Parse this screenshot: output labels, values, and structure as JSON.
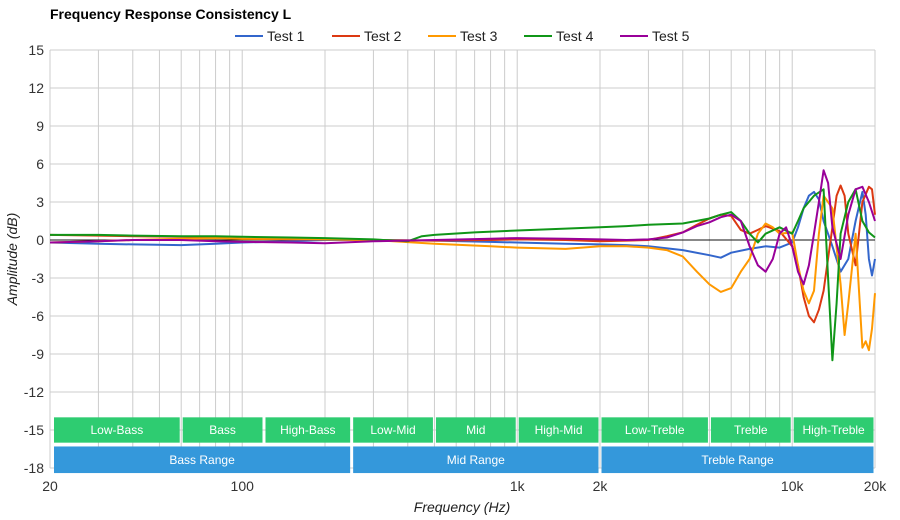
{
  "chart_data": {
    "type": "line",
    "title": "Frequency Response Consistency L",
    "xlabel": "Frequency (Hz)",
    "ylabel": "Amplitude (dB)",
    "x_scale": "log",
    "xlim": [
      20,
      20000
    ],
    "ylim": [
      -18,
      15
    ],
    "grid": true,
    "legend_position": "top",
    "x_ticks": [
      {
        "value": 20,
        "label": "20"
      },
      {
        "value": 100,
        "label": "100"
      },
      {
        "value": 1000,
        "label": "1k"
      },
      {
        "value": 2000,
        "label": "2k"
      },
      {
        "value": 10000,
        "label": "10k"
      },
      {
        "value": 20000,
        "label": "20k"
      }
    ],
    "y_ticks": [
      {
        "value": 15,
        "label": "15"
      },
      {
        "value": 12,
        "label": "12"
      },
      {
        "value": 9,
        "label": "9"
      },
      {
        "value": 6,
        "label": "6"
      },
      {
        "value": 3,
        "label": "3"
      },
      {
        "value": 0,
        "label": "0"
      },
      {
        "value": -3,
        "label": "-3"
      },
      {
        "value": -6,
        "label": "-6"
      },
      {
        "value": -9,
        "label": "-9"
      },
      {
        "value": -12,
        "label": "-12"
      },
      {
        "value": -15,
        "label": "-15"
      },
      {
        "value": -18,
        "label": "-18"
      }
    ],
    "series": [
      {
        "name": "Test 1",
        "color": "#3366cc",
        "points": [
          [
            20,
            -0.2
          ],
          [
            30,
            -0.3
          ],
          [
            40,
            -0.35
          ],
          [
            60,
            -0.4
          ],
          [
            80,
            -0.3
          ],
          [
            100,
            -0.2
          ],
          [
            150,
            -0.1
          ],
          [
            200,
            0
          ],
          [
            300,
            0
          ],
          [
            500,
            -0.05
          ],
          [
            800,
            -0.15
          ],
          [
            1000,
            -0.2
          ],
          [
            1500,
            -0.3
          ],
          [
            2000,
            -0.35
          ],
          [
            2500,
            -0.4
          ],
          [
            3000,
            -0.5
          ],
          [
            4000,
            -0.8
          ],
          [
            5000,
            -1.2
          ],
          [
            5500,
            -1.4
          ],
          [
            6000,
            -1.0
          ],
          [
            7000,
            -0.7
          ],
          [
            8000,
            -0.5
          ],
          [
            9000,
            -0.6
          ],
          [
            10000,
            -0.2
          ],
          [
            10500,
            1.0
          ],
          [
            11000,
            2.5
          ],
          [
            11500,
            3.5
          ],
          [
            12000,
            3.8
          ],
          [
            12500,
            3.2
          ],
          [
            13000,
            1.5
          ],
          [
            14000,
            -0.5
          ],
          [
            15000,
            -2.5
          ],
          [
            16000,
            -1.5
          ],
          [
            17000,
            1.5
          ],
          [
            18000,
            3.8
          ],
          [
            18500,
            2.0
          ],
          [
            19000,
            -1.5
          ],
          [
            19500,
            -2.8
          ],
          [
            20000,
            -1.5
          ]
        ]
      },
      {
        "name": "Test 2",
        "color": "#dc3912",
        "points": [
          [
            20,
            0.4
          ],
          [
            30,
            0.35
          ],
          [
            40,
            0.3
          ],
          [
            60,
            0.25
          ],
          [
            80,
            0.2
          ],
          [
            100,
            0.1
          ],
          [
            150,
            0.05
          ],
          [
            200,
            0.05
          ],
          [
            300,
            0
          ],
          [
            500,
            -0.05
          ],
          [
            800,
            0.0
          ],
          [
            1000,
            0.05
          ],
          [
            1500,
            0.0
          ],
          [
            2000,
            -0.1
          ],
          [
            2500,
            -0.05
          ],
          [
            3000,
            0.0
          ],
          [
            3500,
            0.3
          ],
          [
            4000,
            0.6
          ],
          [
            4500,
            1.2
          ],
          [
            5000,
            1.7
          ],
          [
            5500,
            2.0
          ],
          [
            6000,
            1.9
          ],
          [
            6500,
            0.8
          ],
          [
            7000,
            0.5
          ],
          [
            7500,
            0.8
          ],
          [
            8000,
            1.1
          ],
          [
            9000,
            0.7
          ],
          [
            10000,
            -0.5
          ],
          [
            10500,
            -2.0
          ],
          [
            11000,
            -4.5
          ],
          [
            11500,
            -6.0
          ],
          [
            12000,
            -6.5
          ],
          [
            12500,
            -5.5
          ],
          [
            13000,
            -4.0
          ],
          [
            14000,
            1.0
          ],
          [
            14500,
            3.5
          ],
          [
            15000,
            4.3
          ],
          [
            15500,
            3.5
          ],
          [
            16000,
            0.5
          ],
          [
            17000,
            -2.0
          ],
          [
            18000,
            3.0
          ],
          [
            19000,
            4.2
          ],
          [
            19500,
            4.0
          ],
          [
            20000,
            2.0
          ]
        ]
      },
      {
        "name": "Test 3",
        "color": "#ff9900",
        "points": [
          [
            20,
            -0.2
          ],
          [
            30,
            -0.1
          ],
          [
            40,
            0.0
          ],
          [
            60,
            0.1
          ],
          [
            80,
            0.15
          ],
          [
            100,
            0.1
          ],
          [
            150,
            0.1
          ],
          [
            200,
            0.05
          ],
          [
            300,
            0
          ],
          [
            500,
            -0.3
          ],
          [
            800,
            -0.5
          ],
          [
            1000,
            -0.6
          ],
          [
            1500,
            -0.7
          ],
          [
            2000,
            -0.5
          ],
          [
            2500,
            -0.5
          ],
          [
            3000,
            -0.6
          ],
          [
            3500,
            -0.8
          ],
          [
            4000,
            -1.3
          ],
          [
            4500,
            -2.5
          ],
          [
            5000,
            -3.5
          ],
          [
            5500,
            -4.1
          ],
          [
            6000,
            -3.8
          ],
          [
            6500,
            -2.5
          ],
          [
            7000,
            -1.5
          ],
          [
            7500,
            0.5
          ],
          [
            8000,
            1.3
          ],
          [
            8500,
            1.0
          ],
          [
            9000,
            0.5
          ],
          [
            10000,
            0.6
          ],
          [
            10500,
            -2.0
          ],
          [
            11000,
            -4.0
          ],
          [
            11500,
            -5.0
          ],
          [
            12000,
            -4.0
          ],
          [
            12500,
            0.5
          ],
          [
            13000,
            3.5
          ],
          [
            14000,
            2.5
          ],
          [
            15000,
            -3.5
          ],
          [
            15500,
            -7.5
          ],
          [
            16000,
            -5.0
          ],
          [
            17000,
            0.5
          ],
          [
            18000,
            -8.5
          ],
          [
            18500,
            -8.0
          ],
          [
            19000,
            -8.7
          ],
          [
            19500,
            -7.0
          ],
          [
            20000,
            -4.2
          ]
        ]
      },
      {
        "name": "Test 4",
        "color": "#109618",
        "points": [
          [
            20,
            0.4
          ],
          [
            30,
            0.4
          ],
          [
            40,
            0.35
          ],
          [
            60,
            0.3
          ],
          [
            80,
            0.3
          ],
          [
            100,
            0.25
          ],
          [
            150,
            0.2
          ],
          [
            200,
            0.15
          ],
          [
            300,
            0.05
          ],
          [
            400,
            -0.1
          ],
          [
            450,
            0.3
          ],
          [
            500,
            0.4
          ],
          [
            700,
            0.6
          ],
          [
            1000,
            0.75
          ],
          [
            1500,
            0.9
          ],
          [
            2000,
            1.0
          ],
          [
            2500,
            1.1
          ],
          [
            3000,
            1.2
          ],
          [
            4000,
            1.3
          ],
          [
            5000,
            1.7
          ],
          [
            5500,
            2.0
          ],
          [
            6000,
            2.2
          ],
          [
            6500,
            1.5
          ],
          [
            7000,
            0.5
          ],
          [
            7500,
            -0.2
          ],
          [
            8000,
            0.5
          ],
          [
            9000,
            1.0
          ],
          [
            10000,
            0.5
          ],
          [
            10500,
            1.5
          ],
          [
            11000,
            2.5
          ],
          [
            12000,
            3.5
          ],
          [
            13000,
            4.0
          ],
          [
            13500,
            -3.0
          ],
          [
            14000,
            -9.5
          ],
          [
            14500,
            -5.0
          ],
          [
            15000,
            0.5
          ],
          [
            16000,
            3.0
          ],
          [
            17000,
            4.0
          ],
          [
            18000,
            1.5
          ],
          [
            19000,
            0.6
          ],
          [
            20000,
            0.2
          ]
        ]
      },
      {
        "name": "Test 5",
        "color": "#990099",
        "points": [
          [
            20,
            -0.2
          ],
          [
            30,
            -0.1
          ],
          [
            40,
            0.0
          ],
          [
            60,
            0.0
          ],
          [
            80,
            -0.1
          ],
          [
            100,
            -0.15
          ],
          [
            150,
            -0.2
          ],
          [
            200,
            -0.25
          ],
          [
            300,
            -0.1
          ],
          [
            500,
            0.0
          ],
          [
            800,
            0.1
          ],
          [
            1000,
            0.15
          ],
          [
            1500,
            0.1
          ],
          [
            2000,
            0.05
          ],
          [
            2500,
            0.0
          ],
          [
            3000,
            0.05
          ],
          [
            3500,
            0.2
          ],
          [
            4000,
            0.6
          ],
          [
            4500,
            1.1
          ],
          [
            5000,
            1.4
          ],
          [
            5500,
            1.8
          ],
          [
            6000,
            2.0
          ],
          [
            6500,
            1.5
          ],
          [
            7000,
            -0.5
          ],
          [
            7500,
            -2.0
          ],
          [
            8000,
            -2.5
          ],
          [
            8500,
            -1.5
          ],
          [
            9000,
            0.5
          ],
          [
            9500,
            1.0
          ],
          [
            10000,
            -0.5
          ],
          [
            10500,
            -2.5
          ],
          [
            11000,
            -3.5
          ],
          [
            11500,
            -2.0
          ],
          [
            12000,
            0.5
          ],
          [
            12500,
            3.0
          ],
          [
            13000,
            5.5
          ],
          [
            13500,
            4.5
          ],
          [
            14000,
            1.0
          ],
          [
            15000,
            -1.5
          ],
          [
            16000,
            2.0
          ],
          [
            17000,
            4.0
          ],
          [
            18000,
            4.2
          ],
          [
            19000,
            3.0
          ],
          [
            20000,
            1.5
          ]
        ]
      }
    ],
    "bands_upper": [
      {
        "label": "Low-Bass",
        "from": 20,
        "to": 60
      },
      {
        "label": "Bass",
        "from": 60,
        "to": 120
      },
      {
        "label": "High-Bass",
        "from": 120,
        "to": 250
      },
      {
        "label": "Low-Mid",
        "from": 250,
        "to": 500
      },
      {
        "label": "Mid",
        "from": 500,
        "to": 1000
      },
      {
        "label": "High-Mid",
        "from": 1000,
        "to": 2000
      },
      {
        "label": "Low-Treble",
        "from": 2000,
        "to": 5000
      },
      {
        "label": "Treble",
        "from": 5000,
        "to": 10000
      },
      {
        "label": "High-Treble",
        "from": 10000,
        "to": 20000
      }
    ],
    "bands_lower": [
      {
        "label": "Bass Range",
        "from": 20,
        "to": 250
      },
      {
        "label": "Mid Range",
        "from": 250,
        "to": 2000
      },
      {
        "label": "Treble Range",
        "from": 2000,
        "to": 20000
      }
    ],
    "band_colors": {
      "upper": "#2ecc71",
      "lower": "#3498db"
    },
    "reference_line": 0
  }
}
